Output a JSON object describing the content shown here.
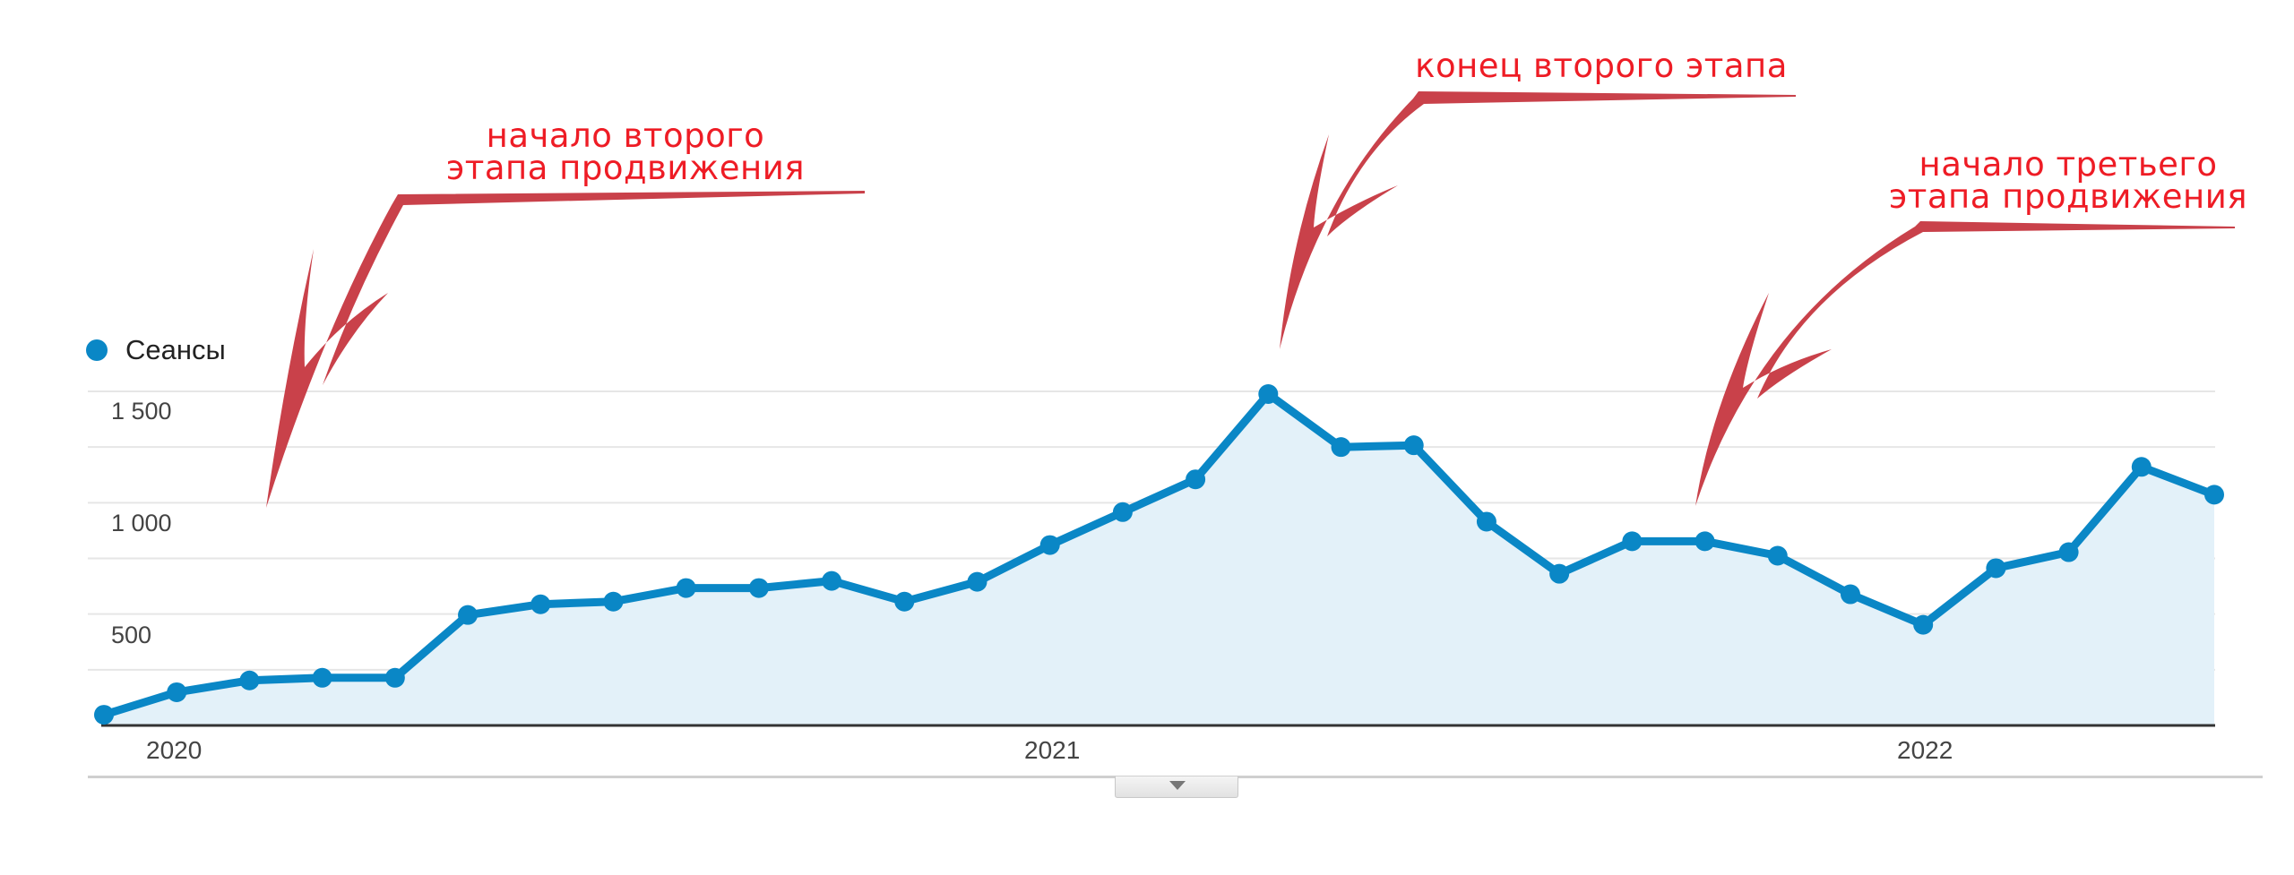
{
  "chart_data": {
    "type": "line",
    "title": "",
    "xlabel": "",
    "ylabel": "",
    "legend": [
      {
        "name": "Сеансы",
        "color": "#0a87c6"
      }
    ],
    "legend_position": "top-left",
    "grid": true,
    "ylim": [
      0,
      1500
    ],
    "y_ticks": [
      {
        "value": 500,
        "label": "500"
      },
      {
        "value": 1000,
        "label": "1 000"
      },
      {
        "value": 1500,
        "label": "1 500"
      }
    ],
    "x_tick_labels": [
      {
        "index": 1,
        "label": "2020"
      },
      {
        "index": 13,
        "label": "2021"
      },
      {
        "index": 25,
        "label": "2022"
      }
    ],
    "series": [
      {
        "name": "Сеансы",
        "color": "#0a87c6",
        "fill": "#e3f1f9",
        "values": [
          48,
          149,
          202,
          214,
          214,
          496,
          544,
          556,
          617,
          617,
          649,
          556,
          645,
          810,
          958,
          1105,
          1488,
          1250,
          1258,
          915,
          681,
          827,
          827,
          762,
          589,
          452,
          706,
          778,
          1161,
          1036
        ]
      }
    ],
    "annotations": [
      {
        "text_lines": [
          "начало второго",
          "этапа продвижения"
        ],
        "points_to_index": 3
      },
      {
        "text_lines": [
          "конец второго этапа"
        ],
        "points_to_index": 16
      },
      {
        "text_lines": [
          "начало третьего",
          "этапа продвижения"
        ],
        "points_to_index": 22
      }
    ]
  },
  "legend": {
    "label": "Сеансы",
    "color": "#0a87c6"
  },
  "y_axis": {
    "labels": [
      "1 500",
      "1 000",
      "500"
    ]
  },
  "x_axis": {
    "labels": [
      "2020",
      "2021",
      "2022"
    ]
  },
  "annotations": {
    "a1": {
      "line1": "начало второго",
      "line2": "этапа продвижения"
    },
    "a2": {
      "line1": "конец второго этапа"
    },
    "a3": {
      "line1": "начало третьего",
      "line2": "этапа продвижения"
    }
  },
  "colors": {
    "annotation_text": "#ee1c25",
    "arrow": "#c9414a",
    "line": "#0a87c6",
    "area": "#e3f1f9",
    "grid": "#e6e6e6",
    "baseline": "#333333"
  },
  "toggle": {
    "icon": "chevron-down"
  }
}
